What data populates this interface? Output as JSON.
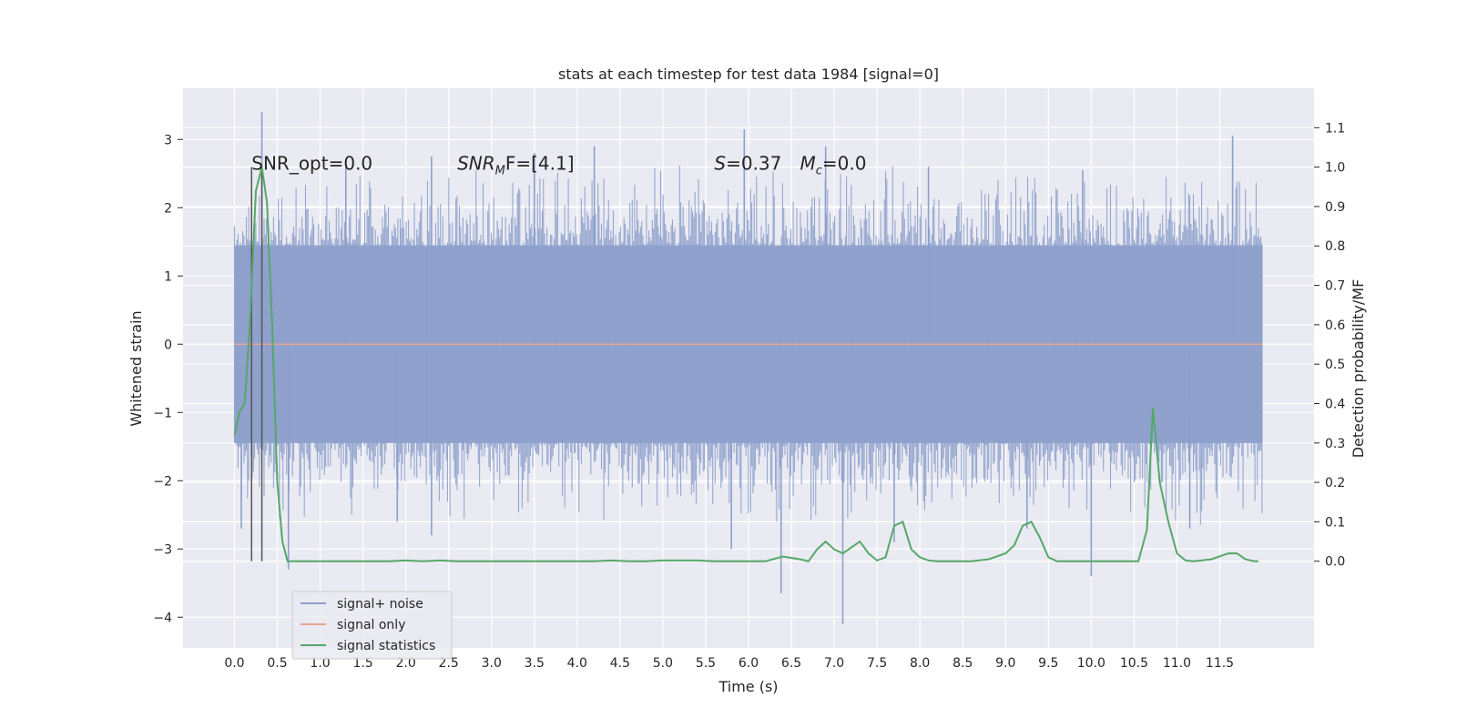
{
  "chart_data": {
    "type": "line",
    "title": "stats at each timestep for test data 1984 [signal=0]",
    "xlabel": "Time (s)",
    "ylabel": "Whitened strain",
    "ylabel_right": "Detection probability/MF",
    "xlim": [
      -0.6,
      12.6
    ],
    "ylim": [
      -4.45,
      3.75
    ],
    "ylim_right": [
      -0.22,
      1.2
    ],
    "xticks": [
      "0.0",
      "0.5",
      "1.0",
      "1.5",
      "2.0",
      "2.5",
      "3.0",
      "3.5",
      "4.0",
      "4.5",
      "5.0",
      "5.5",
      "6.0",
      "6.5",
      "7.0",
      "7.5",
      "8.0",
      "8.5",
      "9.0",
      "9.5",
      "10.0",
      "10.5",
      "11.0",
      "11.5"
    ],
    "yticks": [
      "3",
      "2",
      "1",
      "0",
      "−1",
      "−2",
      "−3",
      "−4"
    ],
    "yticks_right": [
      "1.1",
      "1.0",
      "0.9",
      "0.8",
      "0.7",
      "0.6",
      "0.5",
      "0.4",
      "0.3",
      "0.2",
      "0.1",
      "0.0"
    ],
    "grid": true,
    "legend_position": "lower-left",
    "annotations": [
      {
        "id": "snr_opt",
        "text": "SNR_opt=0.0",
        "at_x": 0.2,
        "at_y": 2.65
      },
      {
        "id": "snr_mf",
        "base": "SNR",
        "sub": "M",
        "rest": "F=[4.1]",
        "at_x": 2.6,
        "at_y": 2.65
      },
      {
        "id": "stat_s",
        "base": "S",
        "rest": "=0.37",
        "at_x": 5.6,
        "at_y": 2.65
      },
      {
        "id": "mc",
        "base": "M",
        "sub": "c",
        "rest": "=0.0",
        "at_x": 6.6,
        "at_y": 2.65
      }
    ],
    "vlines_x": [
      0.2,
      0.32
    ],
    "series": [
      {
        "name": "signal+ noise",
        "color": "#8da0cb",
        "axis": "left",
        "style": "noise",
        "x_range": [
          0.0,
          12.0
        ],
        "envelope": [
          -1.45,
          1.45
        ],
        "spikes": [
          {
            "x": 0.32,
            "y": 3.4
          },
          {
            "x": 0.08,
            "y": -2.7
          },
          {
            "x": 0.63,
            "y": -3.3
          },
          {
            "x": 1.3,
            "y": 2.6
          },
          {
            "x": 2.3,
            "y": 2.75
          },
          {
            "x": 2.3,
            "y": -2.8
          },
          {
            "x": 3.5,
            "y": 2.8
          },
          {
            "x": 4.2,
            "y": 2.9
          },
          {
            "x": 5.8,
            "y": -3.0
          },
          {
            "x": 5.95,
            "y": 3.15
          },
          {
            "x": 6.38,
            "y": -3.65
          },
          {
            "x": 6.9,
            "y": 2.9
          },
          {
            "x": 7.1,
            "y": -4.1
          },
          {
            "x": 7.7,
            "y": -2.9
          },
          {
            "x": 9.25,
            "y": -2.7
          },
          {
            "x": 10.0,
            "y": -3.4
          },
          {
            "x": 11.15,
            "y": -2.7
          },
          {
            "x": 11.65,
            "y": 3.05
          },
          {
            "x": 8.1,
            "y": 2.6
          },
          {
            "x": 1.9,
            "y": -2.6
          },
          {
            "x": 9.9,
            "y": 2.55
          }
        ]
      },
      {
        "name": "signal only",
        "color": "#e9a58f",
        "axis": "left",
        "x": [
          0.0,
          12.0
        ],
        "y": [
          0.0,
          0.0
        ]
      },
      {
        "name": "signal statistics",
        "color": "#55a868",
        "axis": "right",
        "x": [
          0.0,
          0.06,
          0.12,
          0.18,
          0.25,
          0.32,
          0.38,
          0.44,
          0.5,
          0.56,
          0.62,
          0.8,
          1.0,
          1.2,
          1.4,
          1.6,
          1.8,
          2.0,
          2.2,
          2.4,
          2.6,
          2.8,
          3.0,
          3.2,
          3.4,
          3.6,
          3.8,
          4.0,
          4.2,
          4.4,
          4.6,
          4.8,
          5.0,
          5.2,
          5.4,
          5.6,
          5.8,
          6.0,
          6.2,
          6.4,
          6.6,
          6.7,
          6.8,
          6.9,
          7.0,
          7.1,
          7.2,
          7.3,
          7.4,
          7.5,
          7.6,
          7.7,
          7.8,
          7.9,
          8.0,
          8.1,
          8.2,
          8.4,
          8.6,
          8.8,
          9.0,
          9.1,
          9.2,
          9.3,
          9.4,
          9.5,
          9.6,
          9.8,
          10.0,
          10.2,
          10.4,
          10.55,
          10.65,
          10.72,
          10.8,
          10.9,
          11.0,
          11.1,
          11.2,
          11.4,
          11.6,
          11.7,
          11.8,
          11.9,
          11.95
        ],
        "y": [
          0.32,
          0.38,
          0.4,
          0.6,
          0.94,
          1.0,
          0.91,
          0.6,
          0.2,
          0.05,
          0.0,
          0.0,
          0.0,
          0.0,
          0.0,
          0.0,
          0.0,
          0.002,
          0.0,
          0.002,
          0.0,
          0.0,
          0.0,
          0.0,
          0.0,
          0.0,
          0.0,
          0.0,
          0.0,
          0.002,
          0.0,
          0.0,
          0.002,
          0.002,
          0.002,
          0.0,
          0.0,
          0.0,
          0.0,
          0.012,
          0.005,
          0.0,
          0.03,
          0.05,
          0.03,
          0.02,
          0.035,
          0.05,
          0.02,
          0.002,
          0.01,
          0.09,
          0.1,
          0.03,
          0.01,
          0.002,
          0.0,
          0.0,
          0.0,
          0.005,
          0.02,
          0.04,
          0.09,
          0.1,
          0.06,
          0.01,
          0.0,
          0.0,
          0.0,
          0.0,
          0.0,
          0.0,
          0.08,
          0.39,
          0.2,
          0.1,
          0.02,
          0.002,
          0.0,
          0.005,
          0.02,
          0.02,
          0.005,
          0.0,
          0.0
        ]
      }
    ]
  }
}
